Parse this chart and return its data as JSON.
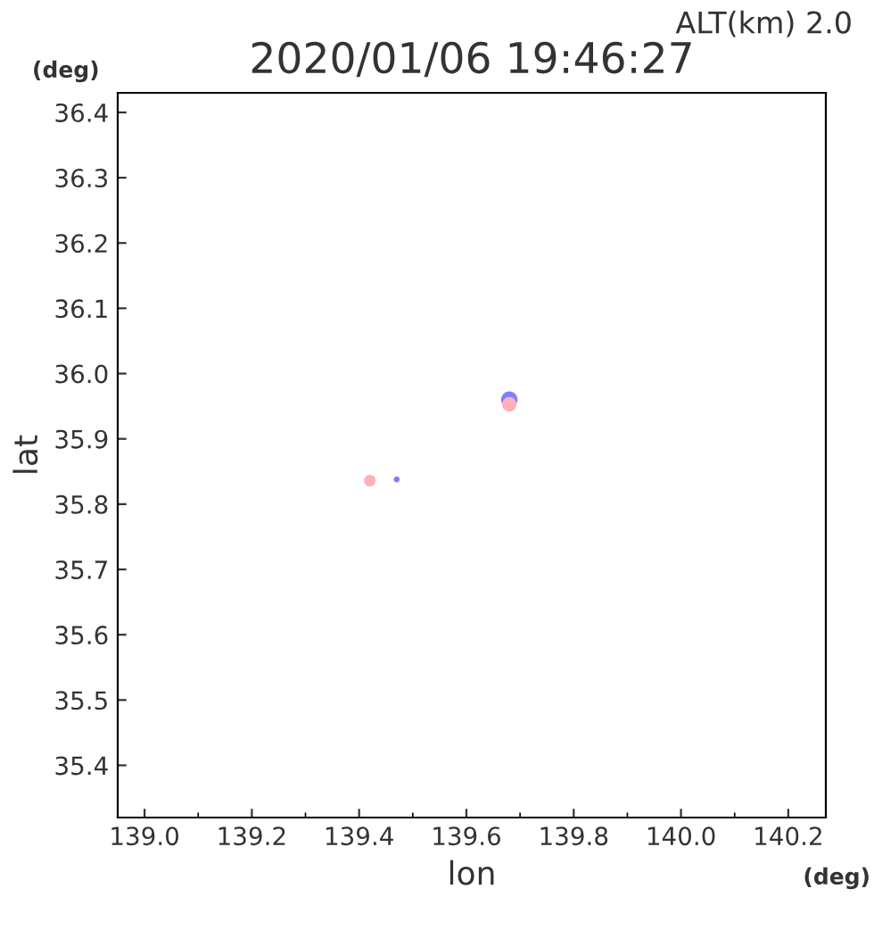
{
  "chart_data": {
    "type": "scatter",
    "title": "2020/01/06 19:46:27",
    "xlabel": "lon",
    "ylabel": "lat",
    "annotations": [
      "ALT(km) 2.0",
      "(deg)",
      "(deg)"
    ],
    "series": [
      {
        "color": "#ffb0b8",
        "x": [
          139.42,
          139.68
        ],
        "values": [
          35.836,
          35.953
        ]
      },
      {
        "color": "#8080ff",
        "x": [
          139.47,
          139.68
        ],
        "values": [
          35.838,
          35.96
        ]
      }
    ],
    "xlim": [
      138.95,
      140.27
    ],
    "ylim": [
      35.32,
      36.43
    ],
    "xticks": [
      {
        "value": 139,
        "label": "139.0"
      },
      139.2,
      139.4,
      139.6,
      139.8,
      {
        "value": 140,
        "label": "140.0"
      },
      140.2
    ],
    "yticks": [
      35.4,
      35.5,
      35.6,
      35.7,
      35.8,
      35.9,
      {
        "value": 36,
        "label": "36.0"
      },
      36.1,
      36.2,
      36.3,
      36.4
    ],
    "marker": "circle",
    "grid": false,
    "legend": false
  }
}
